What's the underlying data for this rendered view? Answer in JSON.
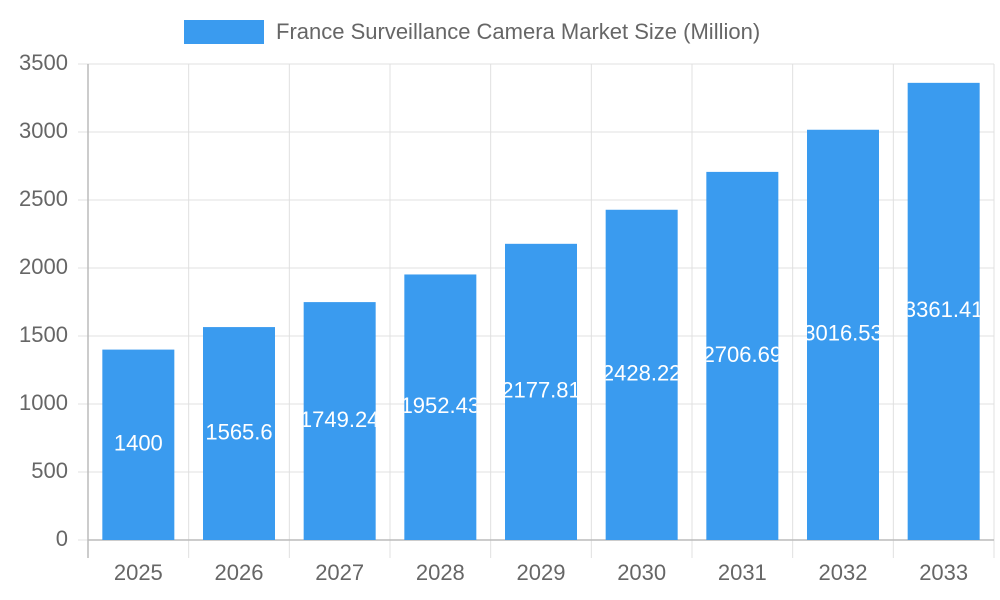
{
  "chart_data": {
    "type": "bar",
    "categories": [
      "2025",
      "2026",
      "2027",
      "2028",
      "2029",
      "2030",
      "2031",
      "2032",
      "2033"
    ],
    "series": [
      {
        "name": "France Surveillance Camera Market Size (Million)",
        "color": "#3a9bef",
        "values": [
          1400,
          1565.6,
          1749.24,
          1952.43,
          2177.81,
          2428.22,
          2706.69,
          3016.53,
          3361.41
        ]
      }
    ],
    "ylim": [
      0,
      3500
    ],
    "yticks": [
      0,
      500,
      1000,
      1500,
      2000,
      2500,
      3000,
      3500
    ],
    "grid": true,
    "legend": "top",
    "data_labels": true
  }
}
